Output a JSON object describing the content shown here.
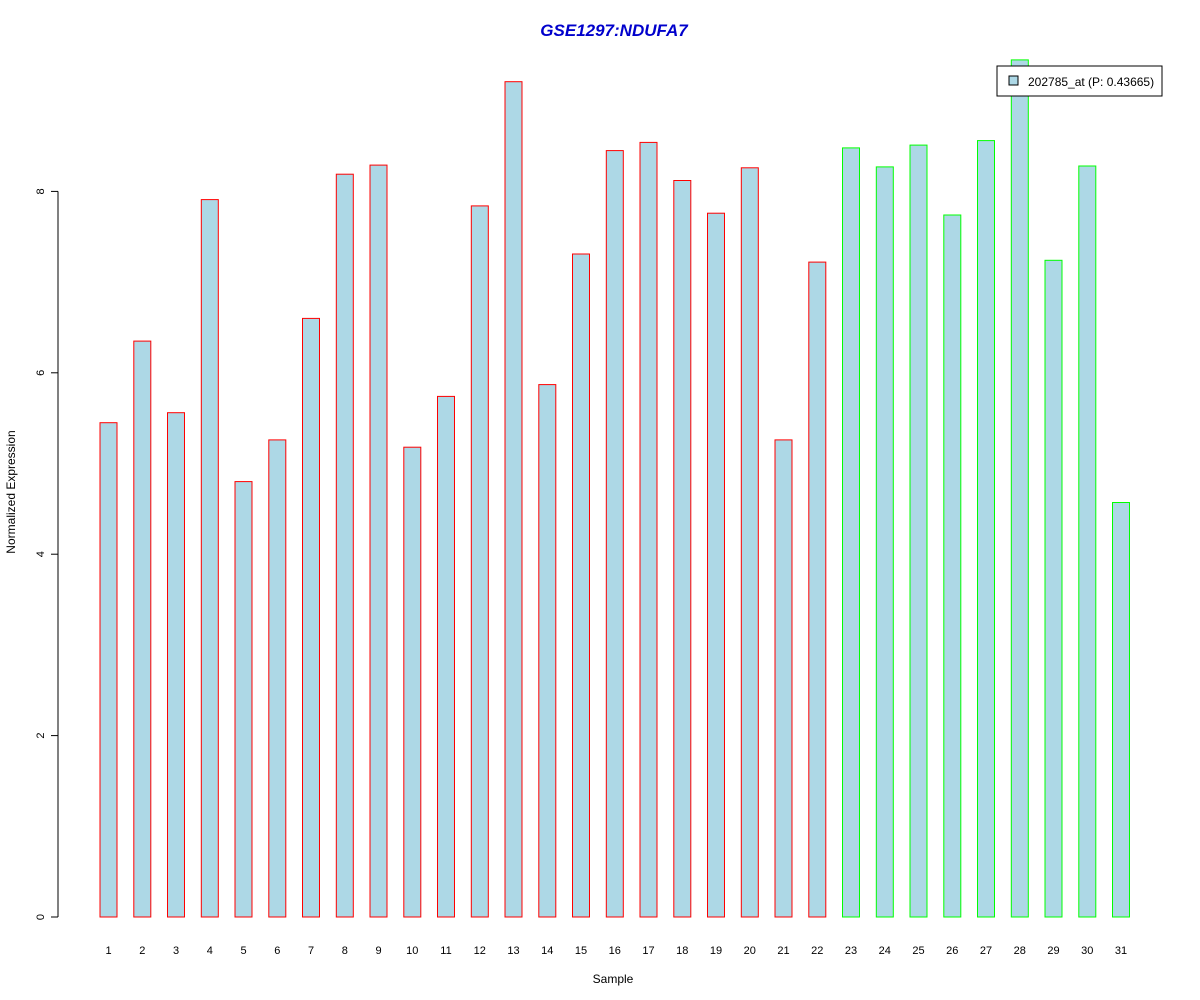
{
  "chart_data": {
    "type": "bar",
    "title": "GSE1297:NDUFA7",
    "xlabel": "Sample",
    "ylabel": "Normalized Expression",
    "categories": [
      "1",
      "2",
      "3",
      "4",
      "5",
      "6",
      "7",
      "8",
      "9",
      "10",
      "11",
      "12",
      "13",
      "14",
      "15",
      "16",
      "17",
      "18",
      "19",
      "20",
      "21",
      "22",
      "23",
      "24",
      "25",
      "26",
      "27",
      "28",
      "29",
      "30",
      "31"
    ],
    "values": [
      5.45,
      6.35,
      5.56,
      7.91,
      4.8,
      5.26,
      6.6,
      8.19,
      8.29,
      5.18,
      5.74,
      7.84,
      9.21,
      5.87,
      7.31,
      8.45,
      8.54,
      8.12,
      7.76,
      8.26,
      5.26,
      7.22,
      8.48,
      8.27,
      8.51,
      7.74,
      8.56,
      9.45,
      7.24,
      8.28,
      4.57
    ],
    "groups": [
      0,
      0,
      0,
      0,
      0,
      0,
      0,
      0,
      0,
      0,
      0,
      0,
      0,
      0,
      0,
      0,
      0,
      0,
      0,
      0,
      0,
      0,
      1,
      1,
      1,
      1,
      1,
      1,
      1,
      1,
      1
    ],
    "group_border_colors": [
      "#ff0000",
      "#00ff00"
    ],
    "bar_fill": "#add8e6",
    "title_color": "#0000cc",
    "yticks": [
      "0",
      "2",
      "4",
      "6",
      "8"
    ],
    "ylim": [
      0,
      9.45
    ],
    "grid": false,
    "legend": {
      "position": "top-right",
      "entries": [
        {
          "label": "202785_at (P: 0.43665)",
          "color": "#add8e6"
        }
      ]
    }
  }
}
